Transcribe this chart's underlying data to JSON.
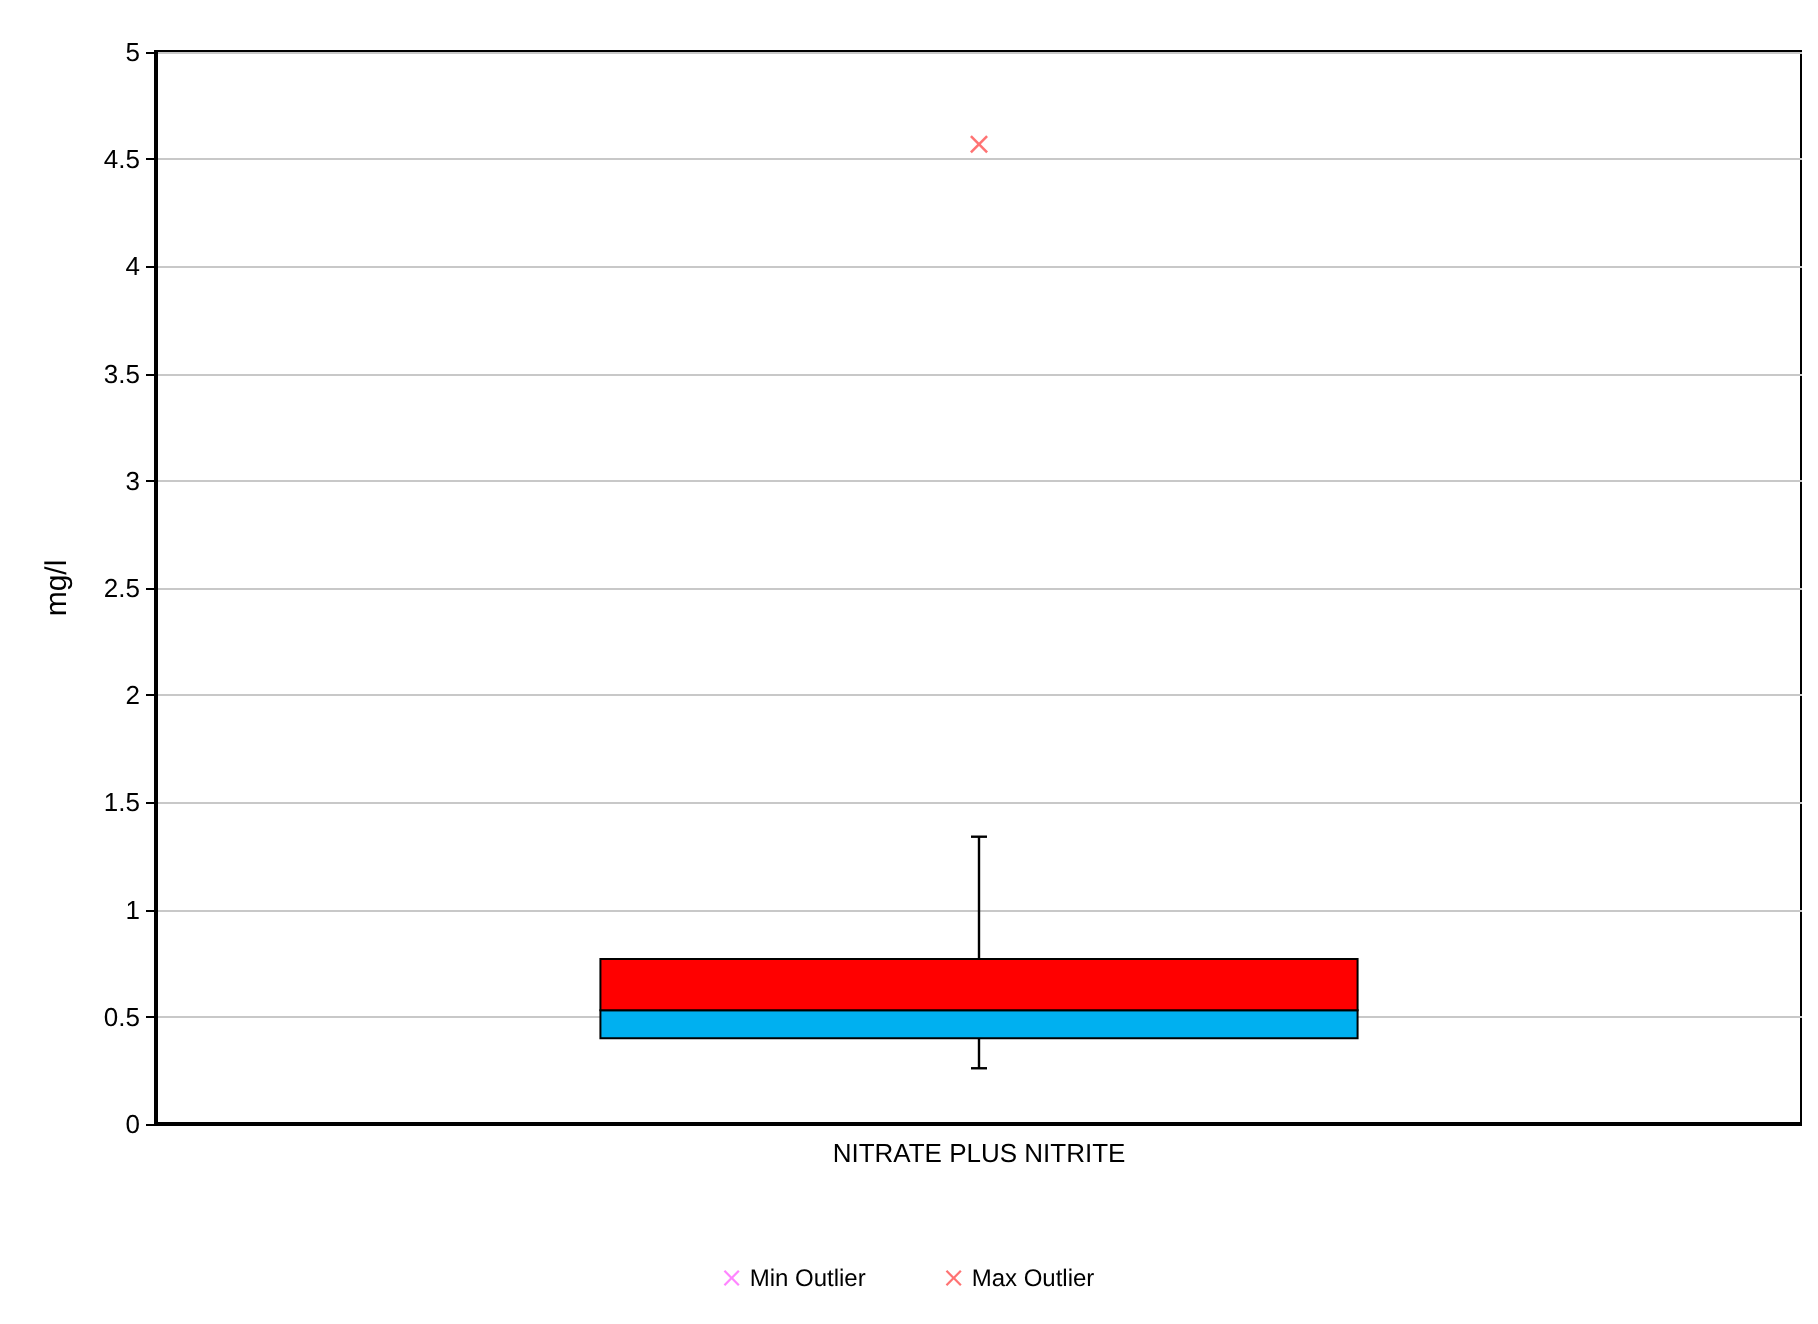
{
  "chart_data": {
    "type": "box",
    "ylabel": "mg/l",
    "categories": [
      "NITRATE PLUS NITRITE"
    ],
    "ylim": [
      0,
      5
    ],
    "yticks": [
      0,
      0.5,
      1,
      1.5,
      2,
      2.5,
      3,
      3.5,
      4,
      4.5,
      5
    ],
    "grid": "y",
    "legend": "bottom",
    "marker": "cross",
    "series": [
      {
        "colors": [
          [
            "#00b0f0",
            "#ff0000"
          ]
        ],
        "boxes": [
          {
            "low": 0.26,
            "q1": 0.4,
            "median": 0.53,
            "q3": 0.77,
            "high": 1.34
          }
        ]
      },
      {
        "type": "scatter",
        "name": "Min Outlier",
        "color": "#ff66ff",
        "values": [
          null
        ]
      },
      {
        "type": "scatter",
        "name": "Max Outlier",
        "color": "#ff5050",
        "values": [
          4.57
        ]
      }
    ]
  }
}
